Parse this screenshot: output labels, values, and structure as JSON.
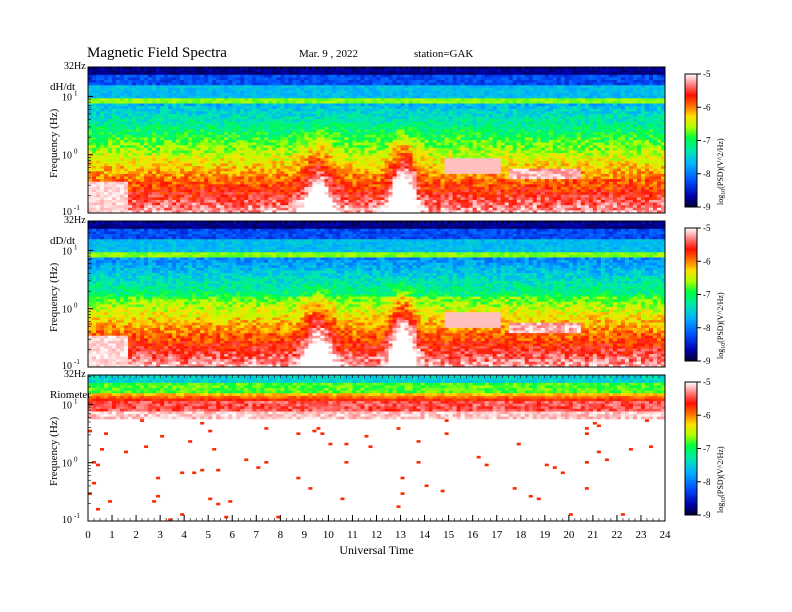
{
  "header": {
    "title": "Magnetic  Field  Spectra",
    "date": "Mar. 9  , 2022",
    "station": "station=GAK"
  },
  "chart_data": [
    {
      "type": "heatmap",
      "panel": "dH/dt",
      "label": "dH/dt",
      "top_tick": "32Hz",
      "ylabel": "Frequency  (Hz)",
      "y_ticks": [
        "10",
        "10",
        "10"
      ],
      "y_tick_exps": [
        "1",
        "0",
        "-1"
      ],
      "colorbar_label": "log10(PSD)(V^2/Hz)",
      "colorbar_text": "log",
      "colorbar_sub": "10",
      "colorbar_rest": "(PSD)(V^2/Hz)",
      "colorbar_ticks": [
        "-5",
        "-6",
        "-7",
        "-8",
        "-9"
      ],
      "colorbar_range": [
        -9,
        -5
      ],
      "activity": "broadband"
    },
    {
      "type": "heatmap",
      "panel": "dD/dt",
      "label": "dD/dt",
      "top_tick": "32Hz",
      "ylabel": "Frequency  (Hz)",
      "y_ticks": [
        "10",
        "10",
        "10"
      ],
      "y_tick_exps": [
        "1",
        "0",
        "-1"
      ],
      "colorbar_text": "log",
      "colorbar_sub": "10",
      "colorbar_rest": "(PSD)(V^2/Hz)",
      "colorbar_ticks": [
        "-5",
        "-6",
        "-7",
        "-8",
        "-9"
      ],
      "colorbar_range": [
        -9,
        -5
      ],
      "activity": "broadband"
    },
    {
      "type": "heatmap",
      "panel": "Riometer",
      "label": "Riometer",
      "top_tick": "32Hz",
      "ylabel": "Frequency  (Hz)",
      "y_ticks": [
        "10",
        "10",
        "10"
      ],
      "y_tick_exps": [
        "1",
        "0",
        "-1"
      ],
      "colorbar_text": "log",
      "colorbar_sub": "10",
      "colorbar_rest": "(PSD)(V^2/Hz)",
      "colorbar_ticks": [
        "-5",
        "-6",
        "-7",
        "-8",
        "-9"
      ],
      "colorbar_range": [
        -9,
        -5
      ],
      "activity": "riometer"
    }
  ],
  "x_axis": {
    "label": "Universal  Time",
    "ticks": [
      "0",
      "1",
      "2",
      "3",
      "4",
      "5",
      "6",
      "7",
      "8",
      "9",
      "10",
      "11",
      "12",
      "13",
      "14",
      "15",
      "16",
      "17",
      "18",
      "19",
      "20",
      "21",
      "22",
      "23",
      "24"
    ],
    "range": [
      0,
      24
    ]
  },
  "colormap": [
    "#000033",
    "#0000aa",
    "#0040ff",
    "#00a0ff",
    "#00e0c0",
    "#00ff40",
    "#c0ff00",
    "#ffe000",
    "#ff7000",
    "#ff1000",
    "#ff8080",
    "#ffffff"
  ]
}
